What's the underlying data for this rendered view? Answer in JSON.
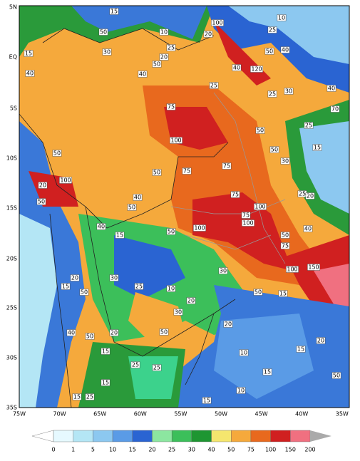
{
  "latitude_labels": [
    "5N",
    "EQ",
    "5S",
    "10S",
    "15S",
    "20S",
    "25S",
    "30S",
    "35S"
  ],
  "longitude_labels": [
    "75W",
    "70W",
    "65W",
    "60W",
    "55W",
    "50W",
    "45W",
    "40W",
    "35W"
  ],
  "colorbar": {
    "labels": [
      "0",
      "1",
      "5",
      "10",
      "15",
      "20",
      "25",
      "30",
      "40",
      "50",
      "75",
      "100",
      "150",
      "200"
    ]
  },
  "contour_labels": [
    15,
    50,
    10,
    100,
    20,
    10,
    25,
    50,
    40,
    30,
    25,
    20,
    50,
    40,
    15,
    40,
    120,
    40,
    25,
    30,
    25,
    40,
    70,
    75,
    25,
    50,
    100,
    50,
    50,
    30,
    15,
    50,
    75,
    75,
    100,
    20,
    50,
    25,
    20,
    75,
    40,
    100,
    50,
    40,
    75,
    100,
    100,
    50,
    40,
    50,
    15,
    75,
    20,
    30,
    100,
    150,
    50,
    15,
    25,
    10,
    20,
    30,
    50,
    15,
    30,
    40,
    50,
    20,
    15,
    50,
    20,
    15,
    20,
    10,
    25,
    25,
    15,
    50,
    15,
    10,
    15,
    15,
    25
  ]
}
